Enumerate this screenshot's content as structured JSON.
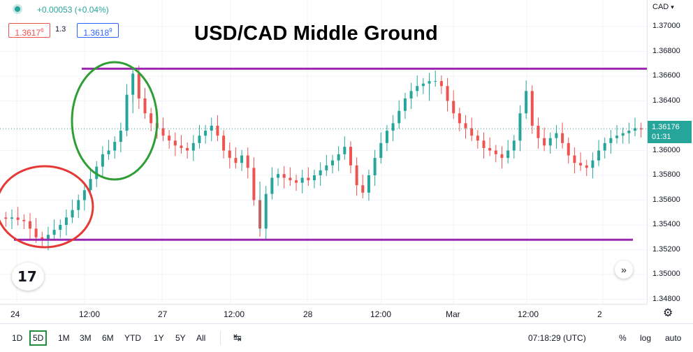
{
  "title": "USD/CAD Middle Ground",
  "header": {
    "change": "+0.00053 (+0.04%)",
    "bid": "1.3617",
    "bid_sup": "6",
    "spread": "1.3",
    "ask": "1.3618",
    "ask_sup": "9"
  },
  "axis": {
    "currency": "CAD",
    "price_labels": [
      "1.37000",
      "1.36800",
      "1.36600",
      "1.36400",
      "1.36000",
      "1.35800",
      "1.35600",
      "1.35400",
      "1.35200",
      "1.35000",
      "1.34800"
    ],
    "current_price": "1.36176",
    "countdown": "01:31"
  },
  "time_axis": [
    "24",
    "12:00",
    "27",
    "12:00",
    "28",
    "12:00",
    "Mar",
    "12:00",
    "2"
  ],
  "toolbar": {
    "timeframes": [
      "1D",
      "5D",
      "1M",
      "3M",
      "6M",
      "YTD",
      "1Y",
      "5Y",
      "All"
    ],
    "active_timeframe": "5D",
    "clock": "07:18:29 (UTC)",
    "percent": "%",
    "log": "log",
    "auto": "auto"
  },
  "colors": {
    "up": "#26a69a",
    "down": "#ef5350",
    "level_lines": "#9c27b0",
    "red_circle": "#e53935",
    "green_circle": "#2e9e35",
    "active_timeframe_border": "#1e8e3e"
  },
  "icons": {
    "logo": "tradingview-logo-icon",
    "scroll": "double-chevron-right-icon",
    "settings": "gear-icon",
    "date_range": "date-range-icon",
    "axis_menu": "chevron-down-icon"
  },
  "chart_data": {
    "type": "candlestick",
    "title": "USD/CAD Middle Ground",
    "symbol": "USD/CAD",
    "ylim": [
      1.347,
      1.372
    ],
    "y_ticks": [
      1.37,
      1.368,
      1.366,
      1.364,
      1.36,
      1.358,
      1.356,
      1.354,
      1.352,
      1.35,
      1.348
    ],
    "x_ticks": [
      "24",
      "12:00",
      "27",
      "12:00",
      "28",
      "12:00",
      "Mar",
      "12:00",
      "2"
    ],
    "series_close": [
      1.3545,
      1.3546,
      1.3544,
      1.3543,
      1.3537,
      1.353,
      1.3528,
      1.3532,
      1.3536,
      1.354,
      1.3546,
      1.3552,
      1.356,
      1.3568,
      1.3577,
      1.3587,
      1.3597,
      1.36,
      1.3607,
      1.3616,
      1.3645,
      1.3662,
      1.3642,
      1.363,
      1.3622,
      1.3618,
      1.3612,
      1.3608,
      1.3604,
      1.3602,
      1.36,
      1.3606,
      1.3612,
      1.3616,
      1.362,
      1.3612,
      1.36,
      1.3594,
      1.359,
      1.3596,
      1.3586,
      1.356,
      1.3537,
      1.3565,
      1.3578,
      1.3581,
      1.3578,
      1.3576,
      1.3574,
      1.3578,
      1.3576,
      1.358,
      1.3584,
      1.3588,
      1.3592,
      1.3597,
      1.3603,
      1.3588,
      1.3572,
      1.3566,
      1.358,
      1.3594,
      1.3606,
      1.3616,
      1.3622,
      1.3632,
      1.3642,
      1.3648,
      1.3652,
      1.3654,
      1.3656,
      1.3656,
      1.3652,
      1.364,
      1.363,
      1.3622,
      1.3618,
      1.3612,
      1.3608,
      1.3602,
      1.36,
      1.3597,
      1.3594,
      1.36,
      1.3608,
      1.363,
      1.3648,
      1.362,
      1.361,
      1.3604,
      1.361,
      1.3614,
      1.3606,
      1.3596,
      1.359,
      1.3588,
      1.3586,
      1.3592,
      1.36,
      1.3606,
      1.361,
      1.3612,
      1.3614,
      1.3616,
      1.3618,
      1.3617
    ],
    "resistance_level": 1.3666,
    "support_level": 1.3528,
    "current_price": 1.36176
  }
}
